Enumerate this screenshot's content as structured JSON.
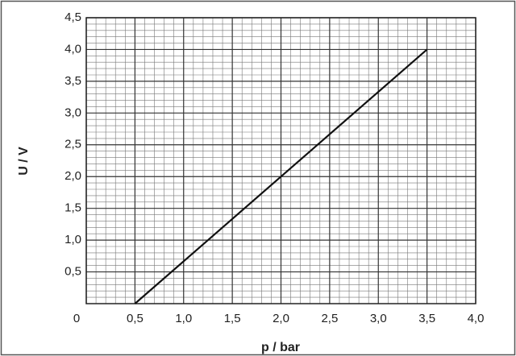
{
  "chart_data": {
    "type": "line",
    "xlabel": "p / bar",
    "ylabel": "U / V",
    "x": [
      0.5,
      3.5
    ],
    "series": [
      {
        "color": "#111111",
        "values": [
          0,
          4.0
        ]
      }
    ],
    "xlim": [
      0,
      4.0
    ],
    "ylim": [
      0,
      4.5
    ],
    "xticks": [
      0,
      {
        "value": 0.5,
        "label": "0,5"
      },
      {
        "value": 1.0,
        "label": "1,0"
      },
      {
        "value": 1.5,
        "label": "1,5"
      },
      {
        "value": 2.0,
        "label": "2,0"
      },
      {
        "value": 2.5,
        "label": "2,5"
      },
      {
        "value": 3.0,
        "label": "3,0"
      },
      {
        "value": 3.5,
        "label": "3,5"
      },
      {
        "value": 4.0,
        "label": "4,0"
      }
    ],
    "yticks": [
      {
        "value": 0.5,
        "label": "0,5"
      },
      {
        "value": 1.0,
        "label": "1,0"
      },
      {
        "value": 1.5,
        "label": "1,5"
      },
      {
        "value": 2.0,
        "label": "2,0"
      },
      {
        "value": 2.5,
        "label": "2,5"
      },
      {
        "value": 3.0,
        "label": "3,0"
      },
      {
        "value": 3.5,
        "label": "3,5"
      },
      {
        "value": 4.0,
        "label": "4,0"
      },
      {
        "value": 4.5,
        "label": "4,5"
      }
    ],
    "grid": true,
    "minor_grid_divisions": 5
  }
}
